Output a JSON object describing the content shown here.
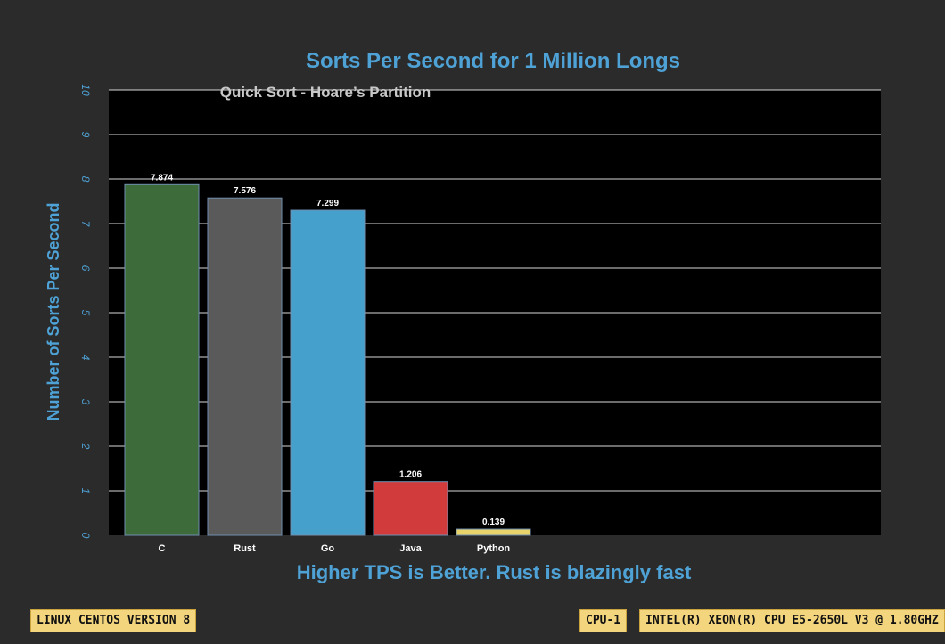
{
  "chart_data": {
    "type": "bar",
    "title": "Sorts Per Second for 1 Million Longs",
    "subtitle": "Quick Sort - Hoare’s Partition",
    "xlabel": "Higher TPS is Better. Rust is blazingly fast",
    "ylabel": "Number of Sorts Per Second",
    "categories": [
      "C",
      "Rust",
      "Go",
      "Java",
      "Python"
    ],
    "values": [
      7.874,
      7.576,
      7.299,
      1.206,
      0.139
    ],
    "value_labels": [
      "7.874",
      "7.576",
      "7.299",
      "1.206",
      "0.139"
    ],
    "bar_colors": [
      "#3d6b3a",
      "#5a5a5a",
      "#45a0cc",
      "#d23b3b",
      "#e8d36a"
    ],
    "ylim": [
      0,
      10
    ],
    "yticks": [
      0,
      1,
      2,
      3,
      4,
      5,
      6,
      7,
      8,
      9,
      10
    ],
    "grid": true,
    "legend": "none",
    "colors": {
      "title": "#4ea2d6",
      "subtitle": "#c8c8c8",
      "axis_text": "#4ea2d6",
      "plot_bg": "#000000",
      "page_bg": "#2b2b2b",
      "gridline": "#d9d9d9"
    }
  },
  "footer": {
    "os_label": "LINUX CENTOS VERSION 8",
    "cpu_tag": "CPU-1",
    "cpu_model": "INTEL(R) XEON(R) CPU E5-2650L V3 @ 1.80GHZ"
  }
}
